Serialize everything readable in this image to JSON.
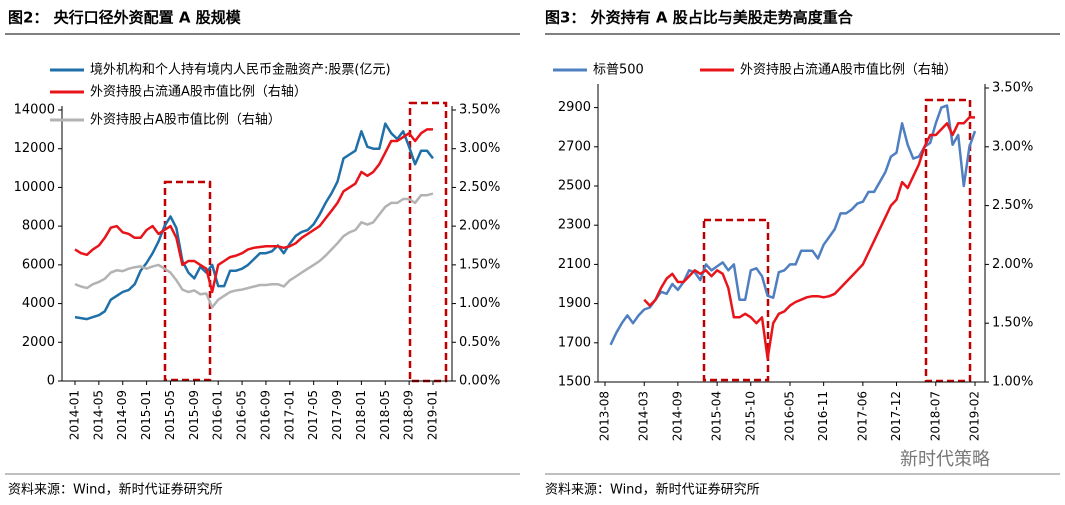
{
  "chart_data": [
    {
      "type": "line",
      "title": "图2：  央行口径外资配置 A 股规模",
      "source": "资料来源：Wind，新时代证券研究所",
      "categories": [
        "2014-01",
        null,
        null,
        null,
        "2014-05",
        null,
        null,
        null,
        "2014-09",
        null,
        null,
        null,
        "2015-01",
        null,
        null,
        null,
        "2015-05",
        null,
        null,
        null,
        "2015-09",
        null,
        null,
        null,
        "2016-01",
        null,
        null,
        null,
        "2016-05",
        null,
        null,
        null,
        "2016-09",
        null,
        null,
        null,
        "2017-01",
        null,
        null,
        null,
        "2017-05",
        null,
        null,
        null,
        "2017-09",
        null,
        null,
        null,
        "2018-01",
        null,
        null,
        null,
        "2018-05",
        null,
        null,
        null,
        "2018-09",
        null,
        null,
        null,
        "2019-01"
      ],
      "ylim": [
        0,
        14000
      ],
      "yticks": [
        0,
        2000,
        4000,
        6000,
        8000,
        10000,
        12000,
        14000
      ],
      "y2lim": [
        0,
        3.5
      ],
      "y2ticks": [
        {
          "value": 0,
          "label": "0.00%"
        },
        {
          "value": 0.5,
          "label": "0.50%"
        },
        {
          "value": 1,
          "label": "1.00%"
        },
        {
          "value": 1.5,
          "label": "1.50%"
        },
        {
          "value": 2,
          "label": "2.00%"
        },
        {
          "value": 2.5,
          "label": "2.50%"
        },
        {
          "value": 3,
          "label": "3.00%"
        },
        {
          "value": 3.5,
          "label": "3.50%"
        }
      ],
      "series": [
        {
          "name": "境外机构和个人持有境内人民币金融资产:股票(亿元)",
          "color": "#1f6fa8",
          "values": [
            3300,
            3250,
            3200,
            3300,
            3400,
            3600,
            4200,
            4400,
            4600,
            4700,
            5000,
            5700,
            6100,
            6600,
            7200,
            8000,
            8500,
            7900,
            6200,
            5600,
            5300,
            5900,
            5600,
            6000,
            4900,
            4900,
            5700,
            5700,
            5800,
            6000,
            6300,
            6600,
            6600,
            6700,
            7000,
            6600,
            7100,
            7500,
            7700,
            7800,
            8100,
            8600,
            9200,
            9700,
            10300,
            11500,
            11700,
            11900,
            12900,
            12100,
            12000,
            12000,
            13300,
            12800,
            12500,
            12900,
            12100,
            11200,
            11900,
            11900,
            11500
          ]
        },
        {
          "name": "外资持股占流通A股市值比例（右轴）",
          "color": "#e8141a",
          "axis": "y2",
          "values": [
            1.7,
            1.65,
            1.63,
            1.7,
            1.75,
            1.85,
            1.98,
            2.0,
            1.92,
            1.9,
            1.85,
            1.85,
            1.95,
            2.0,
            1.9,
            1.95,
            2.0,
            1.85,
            1.5,
            1.55,
            1.55,
            1.5,
            1.45,
            1.15,
            1.5,
            1.55,
            1.6,
            1.62,
            1.65,
            1.7,
            1.72,
            1.73,
            1.74,
            1.74,
            1.74,
            1.72,
            1.74,
            1.78,
            1.85,
            1.9,
            1.95,
            2.0,
            2.1,
            2.2,
            2.3,
            2.45,
            2.5,
            2.55,
            2.7,
            2.65,
            2.7,
            2.8,
            2.95,
            3.1,
            3.1,
            3.15,
            3.2,
            3.1,
            3.2,
            3.25,
            3.25
          ]
        },
        {
          "name": "外资持股占A股市值比例（右轴）",
          "color": "#b3b3b3",
          "axis": "y2",
          "values": [
            1.25,
            1.22,
            1.2,
            1.25,
            1.28,
            1.32,
            1.4,
            1.43,
            1.42,
            1.45,
            1.47,
            1.48,
            1.45,
            1.48,
            1.5,
            1.45,
            1.4,
            1.3,
            1.18,
            1.15,
            1.17,
            1.12,
            1.13,
            0.95,
            1.05,
            1.1,
            1.15,
            1.17,
            1.18,
            1.2,
            1.22,
            1.24,
            1.24,
            1.25,
            1.25,
            1.22,
            1.3,
            1.35,
            1.4,
            1.45,
            1.5,
            1.55,
            1.62,
            1.7,
            1.78,
            1.87,
            1.92,
            1.95,
            2.05,
            2.02,
            2.05,
            2.15,
            2.25,
            2.3,
            2.3,
            2.35,
            2.35,
            2.3,
            2.4,
            2.4,
            2.42
          ]
        }
      ]
    },
    {
      "type": "line",
      "title": "图3：  外资持有 A 股占比与美股走势高度重合",
      "source": "资料来源：Wind，新时代证券研究所",
      "categories": [
        "2013-08",
        null,
        null,
        null,
        null,
        null,
        null,
        "2014-03",
        null,
        null,
        null,
        null,
        null,
        "2014-09",
        null,
        null,
        null,
        null,
        null,
        null,
        "2015-04",
        null,
        null,
        null,
        null,
        null,
        "2015-10",
        null,
        null,
        null,
        null,
        null,
        null,
        "2016-05",
        null,
        null,
        null,
        null,
        null,
        "2016-11",
        null,
        null,
        null,
        null,
        null,
        null,
        "2017-06",
        null,
        null,
        null,
        null,
        null,
        "2017-12",
        null,
        null,
        null,
        null,
        null,
        null,
        "2018-07",
        null,
        null,
        null,
        null,
        null,
        null,
        "2019-02"
      ],
      "ylim": [
        1500,
        3000
      ],
      "yticks": [
        1500,
        1700,
        1900,
        2100,
        2300,
        2500,
        2700,
        2900
      ],
      "y2lim": [
        1,
        3.5
      ],
      "y2ticks": [
        {
          "value": 1,
          "label": "1.00%"
        },
        {
          "value": 1.5,
          "label": "1.50%"
        },
        {
          "value": 2,
          "label": "2.00%"
        },
        {
          "value": 2.5,
          "label": "2.50%"
        },
        {
          "value": 3,
          "label": "3.00%"
        },
        {
          "value": 3.5,
          "label": "3.50%"
        }
      ],
      "series": [
        {
          "name": "标普500",
          "color": "#4f7fc0",
          "values": [
            null,
            1690,
            1750,
            1800,
            1840,
            1800,
            1840,
            1870,
            1880,
            1920,
            1960,
            1950,
            2000,
            1970,
            2010,
            2070,
            2060,
            2020,
            2100,
            2070,
            2090,
            2110,
            2070,
            2100,
            1920,
            1920,
            2070,
            2080,
            2040,
            1940,
            1930,
            2060,
            2070,
            2100,
            2100,
            2170,
            2170,
            2170,
            2130,
            2200,
            2240,
            2280,
            2360,
            2360,
            2380,
            2410,
            2420,
            2470,
            2470,
            2520,
            2570,
            2650,
            2670,
            2820,
            2710,
            2640,
            2650,
            2700,
            2720,
            2820,
            2900,
            2910,
            2710,
            2760,
            2500,
            2700,
            2780
          ]
        },
        {
          "name": "外资持股占流通A股市值比例（右轴）",
          "color": "#e8141a",
          "axis": "y2",
          "values": [
            null,
            null,
            null,
            null,
            null,
            null,
            null,
            1.7,
            1.65,
            1.7,
            1.8,
            1.88,
            1.92,
            1.85,
            1.85,
            1.9,
            1.95,
            1.92,
            1.95,
            1.9,
            1.95,
            1.92,
            1.8,
            1.55,
            1.55,
            1.58,
            1.55,
            1.5,
            1.55,
            1.2,
            1.5,
            1.58,
            1.6,
            1.65,
            1.68,
            1.7,
            1.72,
            1.73,
            1.73,
            1.72,
            1.73,
            1.75,
            1.8,
            1.85,
            1.9,
            1.95,
            2.0,
            2.1,
            2.2,
            2.3,
            2.4,
            2.5,
            2.55,
            2.7,
            2.65,
            2.75,
            2.85,
            3.0,
            3.1,
            3.1,
            3.15,
            3.2,
            3.1,
            3.2,
            3.2,
            3.25,
            3.25
          ]
        }
      ]
    }
  ],
  "watermark": "新时代策略"
}
